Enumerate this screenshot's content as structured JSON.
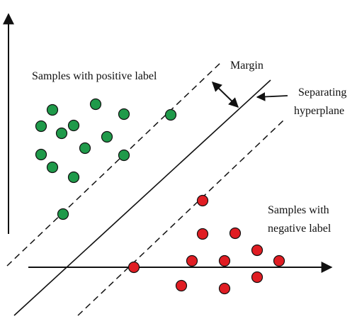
{
  "labels": {
    "positive": "Samples with positive label",
    "margin": "Margin",
    "separating_line1": "Separating",
    "separating_line2": "hyperplane",
    "negative_line1": "Samples with",
    "negative_line2": "negative label"
  },
  "colors": {
    "positive_fill": "#1f9a4a",
    "negative_fill": "#e01d23",
    "stroke": "#111111"
  }
}
